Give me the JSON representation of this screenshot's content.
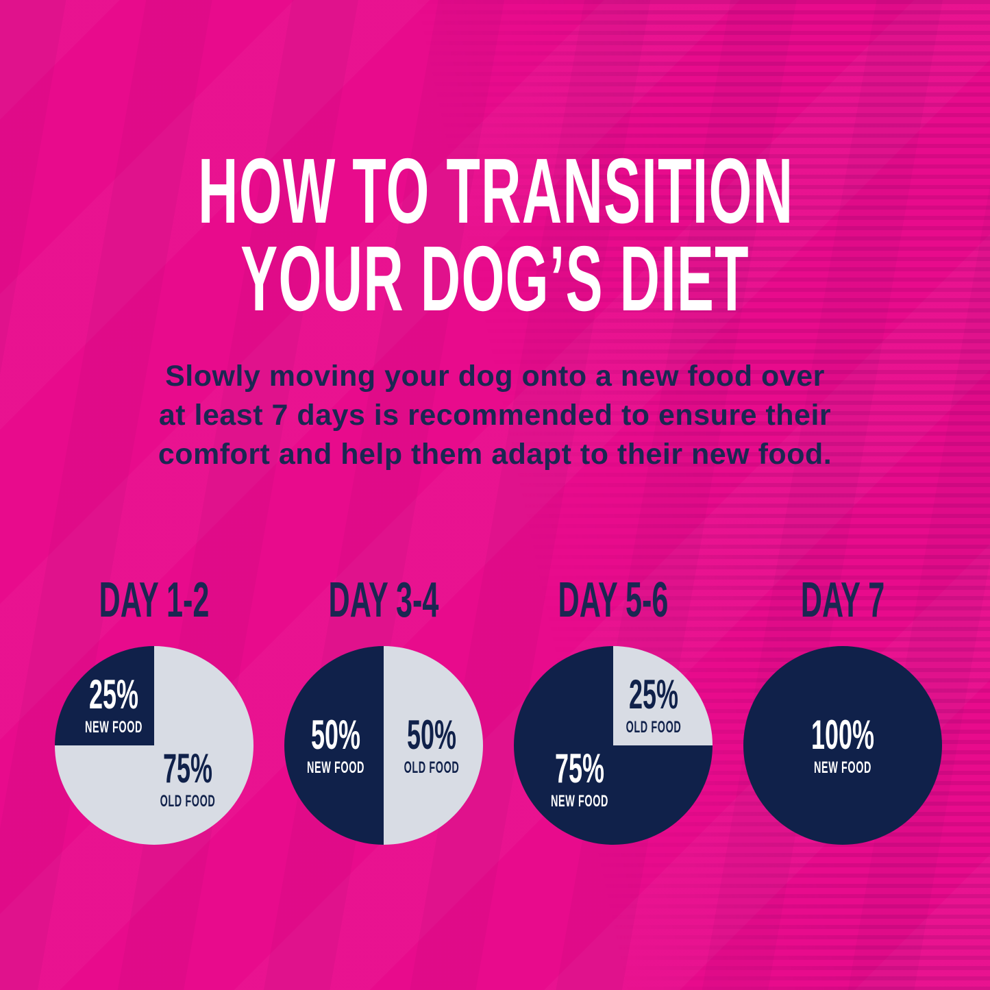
{
  "title": {
    "line1": "HOW TO TRANSITION",
    "line2": "YOUR DOG’S DIET"
  },
  "subtitle": {
    "line1": "Slowly moving your dog onto a new food over",
    "line2": "at least 7 days is recommended to ensure their",
    "line3": "comfort and help them adapt to their new food."
  },
  "colors": {
    "background": "#e80b8c",
    "stripe": "#d90a84",
    "navy": "#10214a",
    "gray": "#d8dce4",
    "white": "#ffffff",
    "text_navy": "#1b2752"
  },
  "chart_data": [
    {
      "type": "pie",
      "title": "DAY 1-2",
      "rotation_deg": 270,
      "slices": [
        {
          "label": "NEW FOOD",
          "pct_label": "25%",
          "value": 25,
          "fill": "navy",
          "text_color": "white"
        },
        {
          "label": "OLD FOOD",
          "pct_label": "75%",
          "value": 75,
          "fill": "gray",
          "text_color": "navy"
        }
      ]
    },
    {
      "type": "pie",
      "title": "DAY 3-4",
      "rotation_deg": 180,
      "slices": [
        {
          "label": "NEW FOOD",
          "pct_label": "50%",
          "value": 50,
          "fill": "navy",
          "text_color": "white"
        },
        {
          "label": "OLD FOOD",
          "pct_label": "50%",
          "value": 50,
          "fill": "gray",
          "text_color": "navy"
        }
      ]
    },
    {
      "type": "pie",
      "title": "DAY 5-6",
      "rotation_deg": 0,
      "slices": [
        {
          "label": "OLD FOOD",
          "pct_label": "25%",
          "value": 25,
          "fill": "gray",
          "text_color": "navy"
        },
        {
          "label": "NEW FOOD",
          "pct_label": "75%",
          "value": 75,
          "fill": "navy",
          "text_color": "white"
        }
      ]
    },
    {
      "type": "pie",
      "title": "DAY 7",
      "rotation_deg": 0,
      "slices": [
        {
          "label": "NEW FOOD",
          "pct_label": "100%",
          "value": 100,
          "fill": "navy",
          "text_color": "white"
        }
      ]
    }
  ]
}
